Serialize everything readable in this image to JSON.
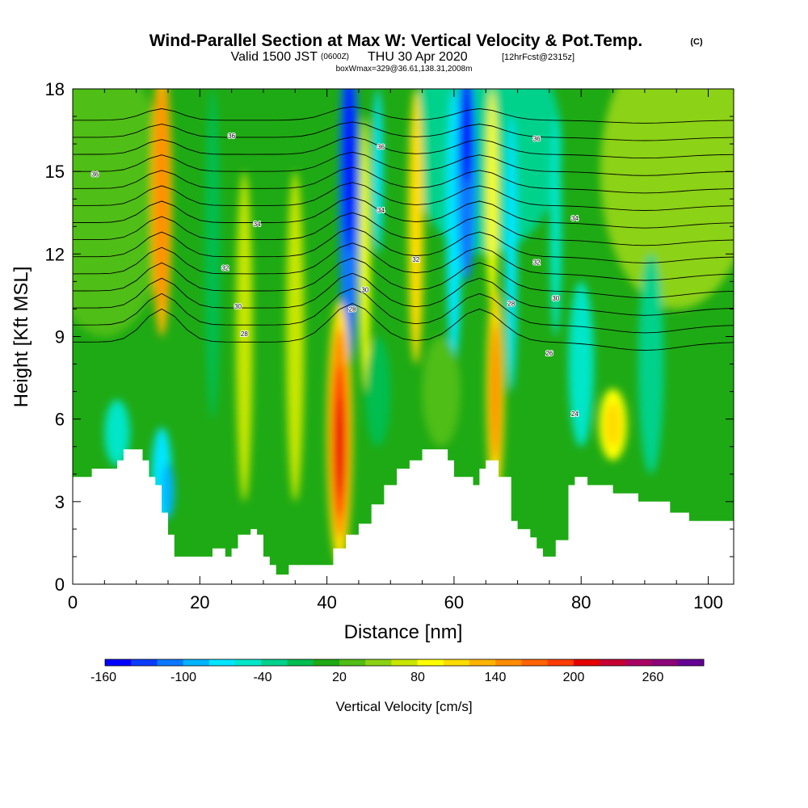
{
  "title": {
    "main": "Wind-Parallel Section at Max W: Vertical Velocity & Pot.Temp.",
    "main_suffix": "(C)",
    "valid_prefix": "Valid 1500 JST",
    "valid_zulu": "(0600Z)",
    "valid_date": "THU 30 Apr 2020",
    "forecast": "[12hrFcst@2315z]",
    "box": "boxWmax=329@36.61,138.31,2008m"
  },
  "chart_data": {
    "type": "heatmap",
    "xlabel": "Distance [nm]",
    "ylabel": "Height [Kft MSL]",
    "xlim": [
      0,
      104
    ],
    "ylim": [
      0,
      18
    ],
    "x_ticks": [
      "0",
      "20",
      "40",
      "60",
      "80",
      "100"
    ],
    "y_ticks": [
      "0",
      "3",
      "6",
      "9",
      "12",
      "15",
      "18"
    ],
    "colorbar": {
      "label": "Vertical Velocity [cm/s]",
      "tick_labels": [
        "-160",
        "-100",
        "-40",
        "20",
        "80",
        "140",
        "200",
        "260"
      ],
      "colors": [
        "#0000ff",
        "#0a3cff",
        "#0a78ff",
        "#00b4ff",
        "#00e6ff",
        "#00e6c8",
        "#00d28c",
        "#00be50",
        "#1eaa14",
        "#50be14",
        "#8cd214",
        "#c8e600",
        "#ffff00",
        "#ffdc00",
        "#ffb400",
        "#ff8c00",
        "#ff6400",
        "#ff3c00",
        "#e60000",
        "#c80032",
        "#aa0064",
        "#8c0078",
        "#640096"
      ]
    },
    "terrain_kft": [
      [
        0,
        3.9
      ],
      [
        3,
        3.9
      ],
      [
        3,
        4.2
      ],
      [
        7,
        4.2
      ],
      [
        7,
        4.5
      ],
      [
        8,
        4.5
      ],
      [
        8,
        4.9
      ],
      [
        11,
        4.9
      ],
      [
        11,
        4.5
      ],
      [
        12,
        4.5
      ],
      [
        12,
        3.9
      ],
      [
        13,
        3.9
      ],
      [
        13,
        3.6
      ],
      [
        14,
        3.6
      ],
      [
        14,
        2.6
      ],
      [
        15,
        2.6
      ],
      [
        15,
        1.8
      ],
      [
        16,
        1.8
      ],
      [
        16,
        1.0
      ],
      [
        22,
        1.0
      ],
      [
        22,
        1.3
      ],
      [
        24,
        1.3
      ],
      [
        24,
        1.0
      ],
      [
        25,
        1.0
      ],
      [
        25,
        1.3
      ],
      [
        26,
        1.3
      ],
      [
        26,
        1.8
      ],
      [
        28,
        1.8
      ],
      [
        28,
        2.0
      ],
      [
        29,
        2.0
      ],
      [
        29,
        1.8
      ],
      [
        30,
        1.8
      ],
      [
        30,
        1.0
      ],
      [
        31,
        1.0
      ],
      [
        31,
        0.7
      ],
      [
        32,
        0.7
      ],
      [
        32,
        0.35
      ],
      [
        34,
        0.35
      ],
      [
        34,
        0.7
      ],
      [
        41,
        0.7
      ],
      [
        41,
        1.3
      ],
      [
        43,
        1.3
      ],
      [
        43,
        1.8
      ],
      [
        45,
        1.8
      ],
      [
        45,
        2.2
      ],
      [
        47,
        2.2
      ],
      [
        47,
        2.9
      ],
      [
        49,
        2.9
      ],
      [
        49,
        3.6
      ],
      [
        51,
        3.6
      ],
      [
        51,
        4.2
      ],
      [
        53,
        4.2
      ],
      [
        53,
        4.5
      ],
      [
        55,
        4.5
      ],
      [
        55,
        4.9
      ],
      [
        59,
        4.9
      ],
      [
        59,
        4.5
      ],
      [
        60,
        4.5
      ],
      [
        60,
        3.9
      ],
      [
        63,
        3.9
      ],
      [
        63,
        3.6
      ],
      [
        64,
        3.6
      ],
      [
        64,
        4.2
      ],
      [
        65,
        4.2
      ],
      [
        65,
        4.5
      ],
      [
        67,
        4.5
      ],
      [
        67,
        3.9
      ],
      [
        69,
        3.9
      ],
      [
        69,
        2.3
      ],
      [
        70,
        2.3
      ],
      [
        70,
        2.0
      ],
      [
        72,
        2.0
      ],
      [
        72,
        1.7
      ],
      [
        73,
        1.7
      ],
      [
        73,
        1.3
      ],
      [
        74,
        1.3
      ],
      [
        74,
        1.0
      ],
      [
        76,
        1.0
      ],
      [
        76,
        1.6
      ],
      [
        78,
        1.6
      ],
      [
        78,
        3.6
      ],
      [
        79,
        3.6
      ],
      [
        79,
        3.9
      ],
      [
        81,
        3.9
      ],
      [
        81,
        3.6
      ],
      [
        85,
        3.6
      ],
      [
        85,
        3.3
      ],
      [
        89,
        3.3
      ],
      [
        89,
        3.0
      ],
      [
        94,
        3.0
      ],
      [
        94,
        2.6
      ],
      [
        97,
        2.6
      ],
      [
        97,
        2.3
      ],
      [
        104,
        2.3
      ]
    ],
    "contours": [
      {
        "label": "36",
        "x": 3.5,
        "y": 14.9
      },
      {
        "label": "36",
        "x": 25,
        "y": 16.3
      },
      {
        "label": "36",
        "x": 48.5,
        "y": 15.9
      },
      {
        "label": "36",
        "x": 73,
        "y": 16.2
      },
      {
        "label": "34",
        "x": 29,
        "y": 13.1
      },
      {
        "label": "34",
        "x": 48.5,
        "y": 13.6
      },
      {
        "label": "34",
        "x": 79,
        "y": 13.3
      },
      {
        "label": "32",
        "x": 24,
        "y": 11.5
      },
      {
        "label": "32",
        "x": 54,
        "y": 11.8
      },
      {
        "label": "32",
        "x": 73,
        "y": 11.7
      },
      {
        "label": "30",
        "x": 26,
        "y": 10.1
      },
      {
        "label": "30",
        "x": 46,
        "y": 10.7
      },
      {
        "label": "30",
        "x": 76,
        "y": 10.4
      },
      {
        "label": "28",
        "x": 27,
        "y": 9.1
      },
      {
        "label": "28",
        "x": 44,
        "y": 10.0
      },
      {
        "label": "28",
        "x": 69,
        "y": 10.2
      },
      {
        "label": "26",
        "x": 75,
        "y": 8.4
      },
      {
        "label": "24",
        "x": 79,
        "y": 6.2
      }
    ]
  }
}
